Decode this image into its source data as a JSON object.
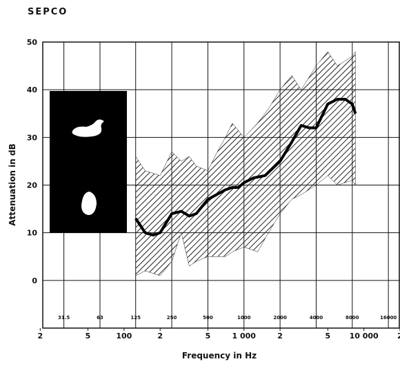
{
  "chart_data": {
    "type": "line",
    "title": "SEPCO",
    "xlabel": "Frequency in Hz",
    "ylabel": "Attenuation in dB",
    "xscale": "log",
    "grid": true,
    "xlim": [
      21,
      20000
    ],
    "ylim": [
      -10,
      50
    ],
    "yticks": [
      0,
      10,
      20,
      30,
      40,
      50
    ],
    "xticks": [
      {
        "value": 20,
        "label": "2"
      },
      {
        "value": 50,
        "label": "5"
      },
      100,
      {
        "value": 200,
        "label": "2"
      },
      {
        "value": 500,
        "label": "5"
      },
      {
        "value": 1000,
        "label": "1 000"
      },
      {
        "value": 2000,
        "label": "2"
      },
      {
        "value": 5000,
        "label": "5"
      },
      {
        "value": 10000,
        "label": "10 000"
      },
      {
        "value": 20000,
        "label": "2"
      }
    ],
    "band_ticks": [
      31.5,
      63,
      125,
      250,
      500,
      1000,
      2000,
      4000,
      8000,
      16000
    ],
    "band": {
      "color": "#222222",
      "x": [
        125,
        150,
        200,
        250,
        300,
        350,
        400,
        500,
        600,
        700,
        800,
        1000,
        1300,
        1600,
        2000,
        2500,
        3000,
        4000,
        5000,
        6000,
        8000,
        8500
      ],
      "upper": [
        26,
        23,
        22,
        27,
        25,
        26,
        24,
        23,
        27,
        30,
        33,
        30,
        33,
        36,
        40,
        43,
        40,
        45,
        48,
        45,
        47,
        48
      ],
      "lower": [
        1,
        2,
        1,
        4,
        10,
        3,
        4,
        5,
        5,
        5,
        6,
        7,
        6,
        10,
        14,
        17,
        18,
        20,
        22,
        20,
        21,
        20
      ]
    },
    "series": [
      {
        "color": "#000000",
        "x": [
          125,
          150,
          175,
          200,
          250,
          300,
          350,
          400,
          500,
          700,
          800,
          900,
          1000,
          1200,
          1500,
          2000,
          2500,
          3000,
          3500,
          4000,
          5000,
          6000,
          7000,
          8000,
          8500
        ],
        "values": [
          13,
          10,
          9.5,
          10,
          14,
          14.5,
          13.5,
          14,
          17,
          19,
          19.5,
          19.5,
          20.5,
          21.5,
          22,
          25,
          29,
          32.5,
          32,
          32,
          37,
          38,
          38,
          37,
          35
        ]
      }
    ]
  }
}
